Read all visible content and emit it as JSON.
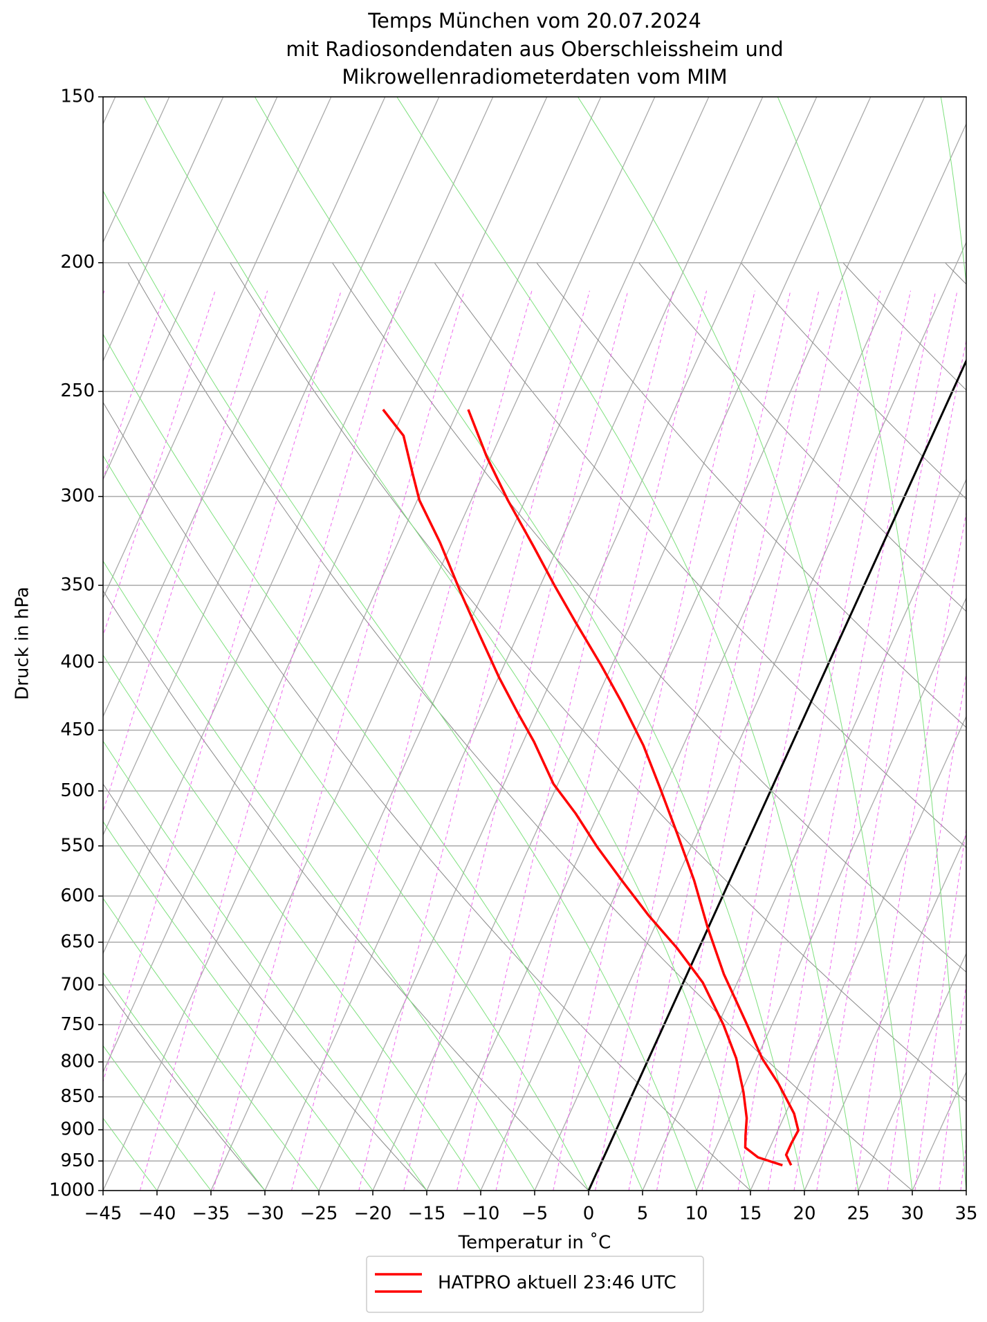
{
  "chart_data": {
    "type": "skewt",
    "title": [
      "Temps München vom 20.07.2024",
      "mit Radiosondendaten aus Oberschleissheim und",
      "Mikrowellenradiometerdaten vom MIM"
    ],
    "x_label": "Temperatur in ˚C",
    "y_label": "Druck in hPa",
    "xlim": [
      -45,
      35
    ],
    "ylim": [
      1000,
      150
    ],
    "log_y": true,
    "grid": true,
    "legend": "lower center",
    "xticks": [
      {
        "value": -45,
        "label": "−45"
      },
      {
        "value": -40,
        "label": "−40"
      },
      {
        "value": -35,
        "label": "−35"
      },
      {
        "value": -30,
        "label": "−30"
      },
      {
        "value": -25,
        "label": "−25"
      },
      {
        "value": -20,
        "label": "−20"
      },
      {
        "value": -15,
        "label": "−15"
      },
      {
        "value": -10,
        "label": "−10"
      },
      {
        "value": -5,
        "label": "−5"
      },
      0,
      5,
      10,
      15,
      20,
      25,
      30,
      35
    ],
    "yticks": [
      150,
      200,
      250,
      300,
      350,
      400,
      450,
      500,
      550,
      600,
      650,
      700,
      750,
      800,
      850,
      900,
      950,
      1000
    ],
    "series": [
      {
        "name": "HATPRO aktuell 23:46 UTC",
        "color": "#ff0000",
        "pressure": [
          957,
          940,
          921,
          901,
          875,
          831,
          795,
          744,
          687,
          633,
          584,
          539,
          497,
          462,
          429,
          402,
          373,
          350,
          327,
          302,
          280,
          258
        ],
        "values": [
          17.7,
          16.8,
          16.8,
          16.9,
          15.8,
          13.1,
          10.5,
          7.3,
          3.4,
          -0.1,
          -3.3,
          -6.8,
          -10.4,
          -13.7,
          -17.5,
          -21.0,
          -25.2,
          -28.7,
          -32.3,
          -36.6,
          -40.4,
          -44.1
        ]
      },
      {
        "color": "#ff0000",
        "pressure": [
          957,
          944,
          928,
          908,
          882,
          843,
          795,
          750,
          697,
          657,
          620,
          584,
          551,
          520,
          494,
          459,
          436,
          411,
          381,
          355,
          325,
          302,
          288,
          270,
          258
        ],
        "values": [
          16.9,
          14.3,
          12.7,
          12.2,
          11.6,
          10.2,
          8.1,
          5.5,
          1.8,
          -2.0,
          -6.1,
          -10.0,
          -13.7,
          -17.1,
          -20.4,
          -24.0,
          -26.8,
          -29.9,
          -33.6,
          -37.0,
          -41.1,
          -44.8,
          -46.6,
          -49.0,
          -52.0
        ]
      }
    ]
  }
}
